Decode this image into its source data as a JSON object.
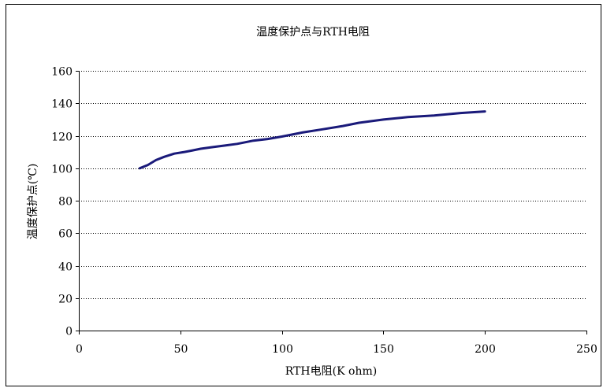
{
  "chart_data": {
    "type": "line",
    "title": "温度保护点与RTH电阻",
    "xlabel": "RTH电阻(K ohm)",
    "ylabel": "温度保护点(℃)",
    "xlim": [
      0,
      250
    ],
    "ylim": [
      0,
      160
    ],
    "x_ticks": [
      0,
      50,
      100,
      150,
      200,
      250
    ],
    "y_ticks": [
      0,
      20,
      40,
      60,
      80,
      100,
      120,
      140,
      160
    ],
    "grid": "horizontal dotted",
    "legend": "none",
    "series": [
      {
        "color": "#1a1a7a",
        "x": [
          30,
          34,
          38,
          42,
          47,
          52,
          56,
          60,
          66,
          72,
          78,
          86,
          93,
          100,
          110,
          120,
          130,
          138,
          150,
          162,
          175,
          188,
          200
        ],
        "y": [
          100,
          102,
          105,
          107,
          109,
          110,
          111,
          112,
          113,
          114,
          115,
          117,
          118,
          119.5,
          122,
          124,
          126,
          128,
          130,
          131.5,
          132.5,
          134,
          135
        ]
      }
    ]
  }
}
